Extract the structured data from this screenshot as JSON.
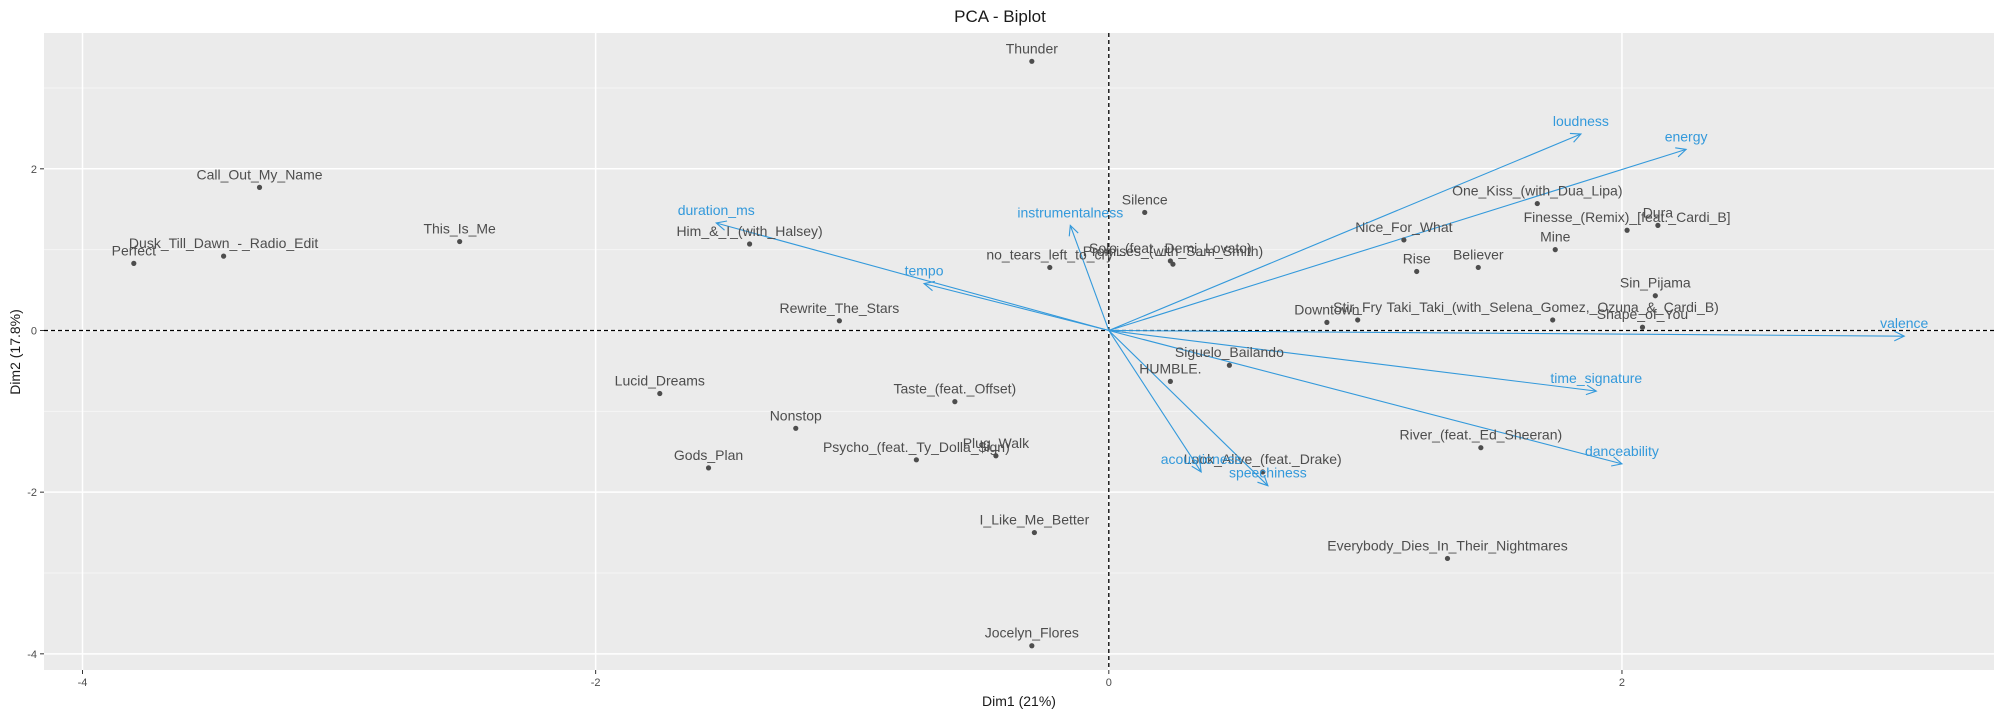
{
  "chart_data": {
    "type": "scatter",
    "title": "PCA - Biplot",
    "xlabel": "Dim1 (21%)",
    "ylabel": "Dim2 (17.8%)",
    "xlim": [
      -4.15,
      3.45
    ],
    "ylim": [
      -4.2,
      3.68
    ],
    "xticks": [
      -4,
      -2,
      0,
      2
    ],
    "yticks": [
      -4,
      -2,
      0,
      2
    ],
    "grid": true,
    "colors": {
      "panel": "#ebebeb",
      "grid_major": "#ffffff",
      "point": "#4d4d4d",
      "point_label": "#4d4d4d",
      "arrow": "#3399db",
      "refline": "#000000"
    },
    "individuals": [
      {
        "label": "Thunder",
        "x": -0.3,
        "y": 3.33
      },
      {
        "label": "Call_Out_My_Name",
        "x": -3.31,
        "y": 1.77
      },
      {
        "label": "Perfect",
        "x": -3.8,
        "y": 0.83
      },
      {
        "label": "Dusk_Till_Dawn_-_Radio_Edit",
        "x": -3.45,
        "y": 0.92
      },
      {
        "label": "This_Is_Me",
        "x": -2.53,
        "y": 1.1
      },
      {
        "label": "Him_&_I_(with_Halsey)",
        "x": -1.4,
        "y": 1.07
      },
      {
        "label": "Silence",
        "x": 0.14,
        "y": 1.46
      },
      {
        "label": "Solo_(feat._Demi_Lovato)",
        "x": 0.24,
        "y": 0.86
      },
      {
        "label": "no_tears_left_to_cry",
        "x": -0.23,
        "y": 0.78
      },
      {
        "label": "Promises_(with_Sam_Smith)",
        "x": 0.25,
        "y": 0.82
      },
      {
        "label": "One_Kiss_(with_Dua_Lipa)",
        "x": 1.67,
        "y": 1.57
      },
      {
        "label": "Nice_For_What",
        "x": 1.15,
        "y": 1.12
      },
      {
        "label": "Dura",
        "x": 2.14,
        "y": 1.3
      },
      {
        "label": "Finesse_(Remix)_[feat._Cardi_B]",
        "x": 2.02,
        "y": 1.24
      },
      {
        "label": "Mine",
        "x": 1.74,
        "y": 1.0
      },
      {
        "label": "Rise",
        "x": 1.2,
        "y": 0.73
      },
      {
        "label": "Believer",
        "x": 1.44,
        "y": 0.78
      },
      {
        "label": "Sin_Pijama",
        "x": 2.13,
        "y": 0.43
      },
      {
        "label": "Downtown",
        "x": 0.85,
        "y": 0.1
      },
      {
        "label": "Stir_Fry",
        "x": 0.97,
        "y": 0.13
      },
      {
        "label": "Taki_Taki_(with_Selena_Gomez,_Ozuna_&_Cardi_B)",
        "x": 1.73,
        "y": 0.13
      },
      {
        "label": "Shape_of_You",
        "x": 2.08,
        "y": 0.04
      },
      {
        "label": "Rewrite_The_Stars",
        "x": -1.05,
        "y": 0.12
      },
      {
        "label": "Siguelo_Bailando",
        "x": 0.47,
        "y": -0.43
      },
      {
        "label": "HUMBLE.",
        "x": 0.24,
        "y": -0.63
      },
      {
        "label": "Lucid_Dreams",
        "x": -1.75,
        "y": -0.78
      },
      {
        "label": "Taste_(feat._Offset)",
        "x": -0.6,
        "y": -0.88
      },
      {
        "label": "Nonstop",
        "x": -1.22,
        "y": -1.21
      },
      {
        "label": "Gods_Plan",
        "x": -1.56,
        "y": -1.7
      },
      {
        "label": "Psycho_(feat._Ty_Dolla_$ign)",
        "x": -0.75,
        "y": -1.6
      },
      {
        "label": "Plug_Walk",
        "x": -0.44,
        "y": -1.55
      },
      {
        "label": "River_(feat._Ed_Sheeran)",
        "x": 1.45,
        "y": -1.45
      },
      {
        "label": "Look_Alive_(feat._Drake)",
        "x": 0.6,
        "y": -1.75
      },
      {
        "label": "I_Like_Me_Better",
        "x": -0.29,
        "y": -2.5
      },
      {
        "label": "Everybody_Dies_In_Their_Nightmares",
        "x": 1.32,
        "y": -2.82
      },
      {
        "label": "Jocelyn_Flores",
        "x": -0.3,
        "y": -3.9
      }
    ],
    "variables": [
      {
        "label": "loudness",
        "x": 1.84,
        "y": 2.43
      },
      {
        "label": "energy",
        "x": 2.25,
        "y": 2.24
      },
      {
        "label": "duration_ms",
        "x": -1.53,
        "y": 1.33
      },
      {
        "label": "instrumentalness",
        "x": -0.15,
        "y": 1.3
      },
      {
        "label": "tempo",
        "x": -0.72,
        "y": 0.58
      },
      {
        "label": "valence",
        "x": 3.1,
        "y": -0.07
      },
      {
        "label": "time_signature",
        "x": 1.9,
        "y": -0.75
      },
      {
        "label": "danceability",
        "x": 2.0,
        "y": -1.65
      },
      {
        "label": "acousticness",
        "x": 0.36,
        "y": -1.75
      },
      {
        "label": "speechiness",
        "x": 0.62,
        "y": -1.92
      }
    ]
  }
}
